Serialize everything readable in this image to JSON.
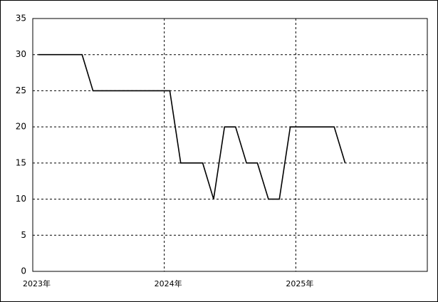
{
  "chart_data": {
    "type": "line",
    "x": [
      2023.042,
      2023.125,
      2023.208,
      2023.292,
      2023.375,
      2023.458,
      2023.542,
      2023.625,
      2023.708,
      2023.792,
      2023.875,
      2023.958,
      2024.042,
      2024.125,
      2024.208,
      2024.292,
      2024.375,
      2024.458,
      2024.542,
      2024.625,
      2024.708,
      2024.792,
      2024.875,
      2024.958,
      2025.042,
      2025.125,
      2025.208,
      2025.292,
      2025.375
    ],
    "series": [
      {
        "color": "#000000",
        "values": [
          30,
          30,
          30,
          30,
          30,
          25,
          25,
          25,
          25,
          25,
          25,
          25,
          25,
          15,
          15,
          15,
          10,
          20,
          20,
          15,
          15,
          10,
          10,
          20,
          20,
          20,
          20,
          20,
          15
        ]
      }
    ],
    "xlim": [
      2023,
      2026
    ],
    "xticks": [
      {
        "value": 2023,
        "label": "2023年"
      },
      {
        "value": 2024,
        "label": "2024年"
      },
      {
        "value": 2025,
        "label": "2025年"
      }
    ],
    "ylim": [
      0,
      35
    ],
    "yticks": [
      0,
      5,
      10,
      15,
      20,
      25,
      30,
      35
    ],
    "grid": true
  }
}
